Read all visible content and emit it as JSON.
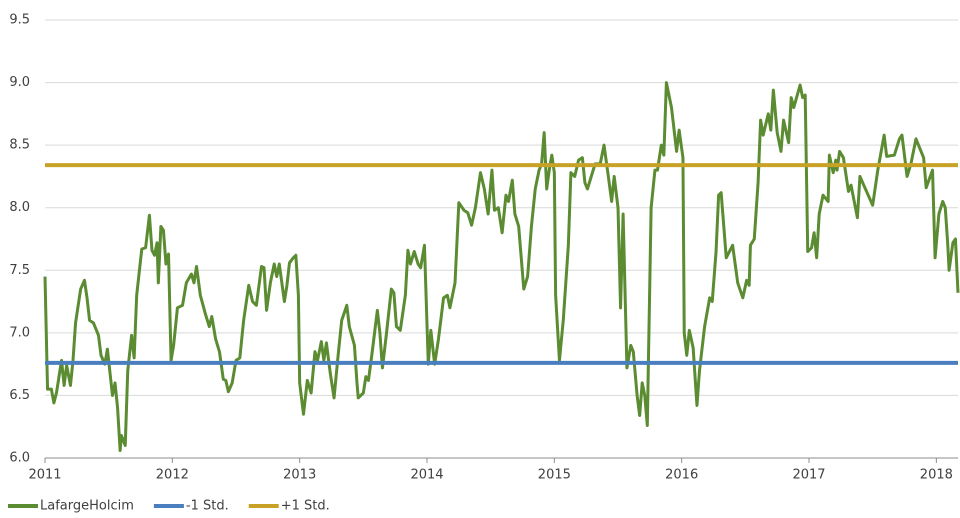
{
  "chart_data": {
    "type": "line",
    "legend": "bottom-left",
    "grid": true,
    "xlim": [
      2011,
      2018.17
    ],
    "xticks": [
      2011,
      2012,
      2013,
      2014,
      2015,
      2016,
      2017,
      2018
    ],
    "ylim": [
      6,
      9.5
    ],
    "yticks": [
      {
        "value": 6,
        "label": "6.0"
      },
      6.5,
      {
        "value": 7,
        "label": "7.0"
      },
      7.5,
      {
        "value": 8,
        "label": "8.0"
      },
      8.5,
      {
        "value": 9,
        "label": "9.0"
      },
      9.5
    ],
    "series": [
      {
        "name": "LafargeHolcim",
        "color": "#5b8c32",
        "x": [
          2011.0,
          2011.02,
          2011.05,
          2011.07,
          2011.09,
          2011.13,
          2011.15,
          2011.17,
          2011.2,
          2011.22,
          2011.24,
          2011.28,
          2011.31,
          2011.33,
          2011.35,
          2011.38,
          2011.42,
          2011.44,
          2011.47,
          2011.49,
          2011.53,
          2011.55,
          2011.57,
          2011.59,
          2011.6,
          2011.63,
          2011.65,
          2011.68,
          2011.7,
          2011.72,
          2011.76,
          2011.79,
          2011.82,
          2011.84,
          2011.86,
          2011.88,
          2011.89,
          2011.91,
          2011.93,
          2011.95,
          2011.97,
          2011.99,
          2012.01,
          2012.04,
          2012.08,
          2012.11,
          2012.15,
          2012.17,
          2012.19,
          2012.22,
          2012.26,
          2012.29,
          2012.31,
          2012.34,
          2012.37,
          2012.4,
          2012.42,
          2012.44,
          2012.47,
          2012.5,
          2012.53,
          2012.56,
          2012.6,
          2012.63,
          2012.66,
          2012.7,
          2012.72,
          2012.74,
          2012.77,
          2012.8,
          2012.82,
          2012.84,
          2012.88,
          2012.9,
          2012.92,
          2012.95,
          2012.97,
          2012.99,
          2013.0,
          2013.03,
          2013.06,
          2013.09,
          2013.12,
          2013.14,
          2013.17,
          2013.19,
          2013.21,
          2013.24,
          2013.27,
          2013.3,
          2013.33,
          2013.37,
          2013.39,
          2013.43,
          2013.45,
          2013.46,
          2013.5,
          2013.52,
          2013.54,
          2013.57,
          2013.61,
          2013.63,
          2013.65,
          2013.68,
          2013.72,
          2013.74,
          2013.76,
          2013.79,
          2013.83,
          2013.85,
          2013.87,
          2013.9,
          2013.93,
          2013.95,
          2013.98,
          2014.01,
          2014.03,
          2014.06,
          2014.09,
          2014.13,
          2014.16,
          2014.18,
          2014.22,
          2014.25,
          2014.29,
          2014.32,
          2014.35,
          2014.38,
          2014.42,
          2014.45,
          2014.48,
          2014.51,
          2014.53,
          2014.56,
          2014.59,
          2014.62,
          2014.64,
          2014.67,
          2014.69,
          2014.72,
          2014.76,
          2014.79,
          2014.82,
          2014.85,
          2014.88,
          2014.9,
          2014.92,
          2014.94,
          2014.96,
          2014.98,
          2015.0,
          2015.01,
          2015.04,
          2015.07,
          2015.11,
          2015.13,
          2015.16,
          2015.19,
          2015.22,
          2015.24,
          2015.26,
          2015.29,
          2015.32,
          2015.36,
          2015.39,
          2015.42,
          2015.45,
          2015.47,
          2015.5,
          2015.52,
          2015.54,
          2015.57,
          2015.6,
          2015.62,
          2015.65,
          2015.67,
          2015.69,
          2015.71,
          2015.73,
          2015.76,
          2015.79,
          2015.81,
          2015.84,
          2015.86,
          2015.88,
          2015.92,
          2015.96,
          2015.98,
          2016.01,
          2016.02,
          2016.04,
          2016.06,
          2016.09,
          2016.12,
          2016.14,
          2016.18,
          2016.22,
          2016.24,
          2016.27,
          2016.29,
          2016.31,
          2016.35,
          2016.4,
          2016.44,
          2016.48,
          2016.51,
          2016.53,
          2016.54,
          2016.57,
          2016.6,
          2016.62,
          2016.64,
          2016.68,
          2016.7,
          2016.72,
          2016.75,
          2016.78,
          2016.8,
          2016.84,
          2016.86,
          2016.88,
          2016.93,
          2016.95,
          2016.97,
          2016.99,
          2017.02,
          2017.04,
          2017.06,
          2017.08,
          2017.11,
          2017.15,
          2017.16,
          2017.19,
          2017.21,
          2017.22,
          2017.24,
          2017.27,
          2017.31,
          2017.33,
          2017.38,
          2017.4,
          2017.43,
          2017.5,
          2017.54,
          2017.59,
          2017.61,
          2017.67,
          2017.71,
          2017.73,
          2017.77,
          2017.8,
          2017.84,
          2017.88,
          2017.9,
          2017.92,
          2017.97,
          2017.99,
          2018.02,
          2018.05,
          2018.07,
          2018.09,
          2018.1,
          2018.13,
          2018.15,
          2018.17
        ],
        "values": [
          7.45,
          6.55,
          6.55,
          6.44,
          6.52,
          6.78,
          6.58,
          6.74,
          6.58,
          6.78,
          7.08,
          7.35,
          7.42,
          7.28,
          7.1,
          7.08,
          6.98,
          6.82,
          6.75,
          6.87,
          6.5,
          6.6,
          6.4,
          6.06,
          6.18,
          6.1,
          6.7,
          6.98,
          6.8,
          7.3,
          7.67,
          7.68,
          7.94,
          7.66,
          7.62,
          7.72,
          7.4,
          7.85,
          7.82,
          7.55,
          7.63,
          6.78,
          6.9,
          7.2,
          7.22,
          7.4,
          7.47,
          7.4,
          7.53,
          7.3,
          7.15,
          7.05,
          7.13,
          6.95,
          6.85,
          6.63,
          6.62,
          6.53,
          6.6,
          6.78,
          6.8,
          7.1,
          7.38,
          7.25,
          7.22,
          7.53,
          7.52,
          7.18,
          7.4,
          7.55,
          7.45,
          7.55,
          7.25,
          7.38,
          7.56,
          7.6,
          7.62,
          7.3,
          6.6,
          6.35,
          6.62,
          6.52,
          6.85,
          6.78,
          6.93,
          6.78,
          6.92,
          6.68,
          6.48,
          6.8,
          7.1,
          7.22,
          7.05,
          6.9,
          6.6,
          6.48,
          6.52,
          6.65,
          6.62,
          6.85,
          7.18,
          7.0,
          6.72,
          6.98,
          7.35,
          7.32,
          7.05,
          7.02,
          7.3,
          7.66,
          7.55,
          7.65,
          7.55,
          7.52,
          7.7,
          6.75,
          7.02,
          6.75,
          6.95,
          7.28,
          7.3,
          7.2,
          7.4,
          8.04,
          7.98,
          7.96,
          7.86,
          8.0,
          8.28,
          8.15,
          7.95,
          8.3,
          7.98,
          8.0,
          7.8,
          8.1,
          8.05,
          8.22,
          7.95,
          7.85,
          7.35,
          7.45,
          7.85,
          8.15,
          8.3,
          8.35,
          8.6,
          8.15,
          8.3,
          8.42,
          8.28,
          7.3,
          6.78,
          7.1,
          7.7,
          8.28,
          8.25,
          8.38,
          8.4,
          8.2,
          8.15,
          8.25,
          8.35,
          8.35,
          8.5,
          8.28,
          8.05,
          8.25,
          8.0,
          7.2,
          7.95,
          6.72,
          6.9,
          6.85,
          6.5,
          6.34,
          6.6,
          6.5,
          6.26,
          8.0,
          8.3,
          8.3,
          8.5,
          8.42,
          9.0,
          8.8,
          8.45,
          8.62,
          8.4,
          7.0,
          6.82,
          7.02,
          6.88,
          6.42,
          6.7,
          7.05,
          7.28,
          7.25,
          7.65,
          8.1,
          8.12,
          7.6,
          7.7,
          7.4,
          7.28,
          7.42,
          7.38,
          7.7,
          7.75,
          8.2,
          8.7,
          8.58,
          8.75,
          8.62,
          8.94,
          8.6,
          8.45,
          8.7,
          8.52,
          8.88,
          8.8,
          8.98,
          8.88,
          8.9,
          7.65,
          7.68,
          7.8,
          7.6,
          7.95,
          8.1,
          8.05,
          8.42,
          8.28,
          8.38,
          8.3,
          8.45,
          8.4,
          8.13,
          8.18,
          7.92,
          8.25,
          8.18,
          8.02,
          8.3,
          8.58,
          8.41,
          8.42,
          8.55,
          8.58,
          8.25,
          8.35,
          8.55,
          8.45,
          8.4,
          8.16,
          8.3,
          7.6,
          7.95,
          8.05,
          8.0,
          7.7,
          7.5,
          7.72,
          7.75,
          7.32
        ]
      },
      {
        "name": "-1 Std.",
        "color": "#4a7ebf",
        "value": 6.76
      },
      {
        "name": "+1 Std.",
        "color": "#c8a227",
        "value": 8.34
      }
    ]
  }
}
